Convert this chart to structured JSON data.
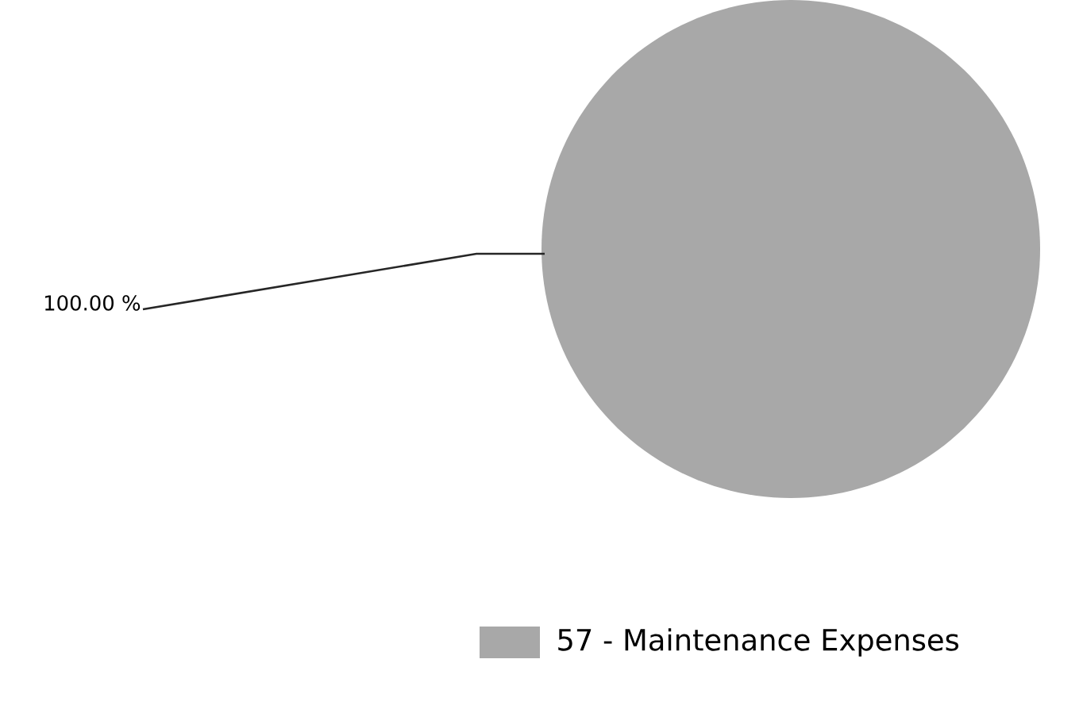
{
  "chart_data": {
    "type": "pie",
    "categories": [
      "57 - Maintenance Expenses"
    ],
    "values": [
      100
    ],
    "colors": [
      "#a8a8a8"
    ],
    "value_labels": [
      "100.00 %"
    ],
    "legend": "bottom"
  }
}
